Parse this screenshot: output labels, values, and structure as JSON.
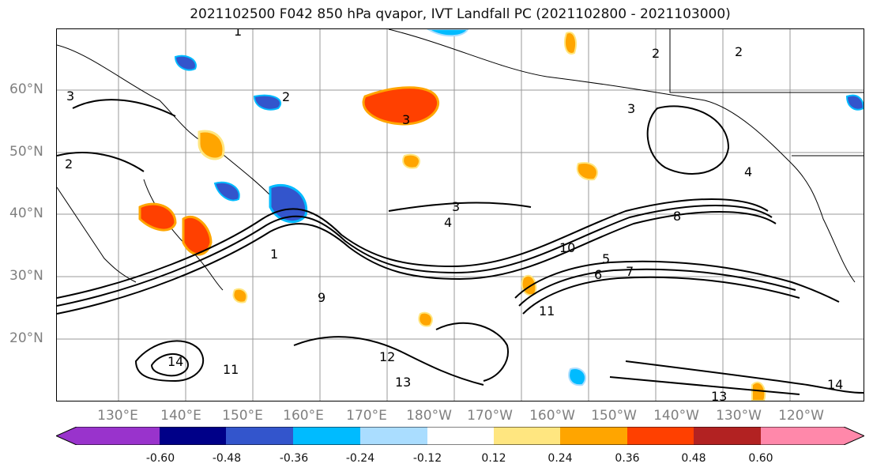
{
  "title": "2021102500 F042 850 hPa qvapor, IVT Landfall PC (2021102800 - 2021103000)",
  "lat_labels": [
    "60°N",
    "50°N",
    "40°N",
    "30°N",
    "20°N"
  ],
  "lon_labels": [
    "130°E",
    "140°E",
    "150°E",
    "160°E",
    "170°E",
    "180°W",
    "170°W",
    "160°W",
    "150°W",
    "140°W",
    "130°W",
    "120°W"
  ],
  "colorbar": {
    "colors": [
      "#9933cc",
      "#000088",
      "#3355cc",
      "#00bbff",
      "#aaddff",
      "#ffffff",
      "#ffe680",
      "#ffa500",
      "#ff4000",
      "#b22222",
      "#ff88aa"
    ],
    "tick_labels": [
      "-0.60",
      "-0.48",
      "-0.36",
      "-0.24",
      "-0.12",
      "0.12",
      "0.24",
      "0.36",
      "0.48",
      "0.60"
    ]
  },
  "contour_labels": [
    "1",
    "1",
    "2",
    "2",
    "2",
    "2",
    "3",
    "3",
    "3",
    "3",
    "4",
    "4",
    "5",
    "6",
    "7",
    "8",
    "9",
    "10",
    "11",
    "11",
    "12",
    "13",
    "13",
    "14",
    "14"
  ]
}
